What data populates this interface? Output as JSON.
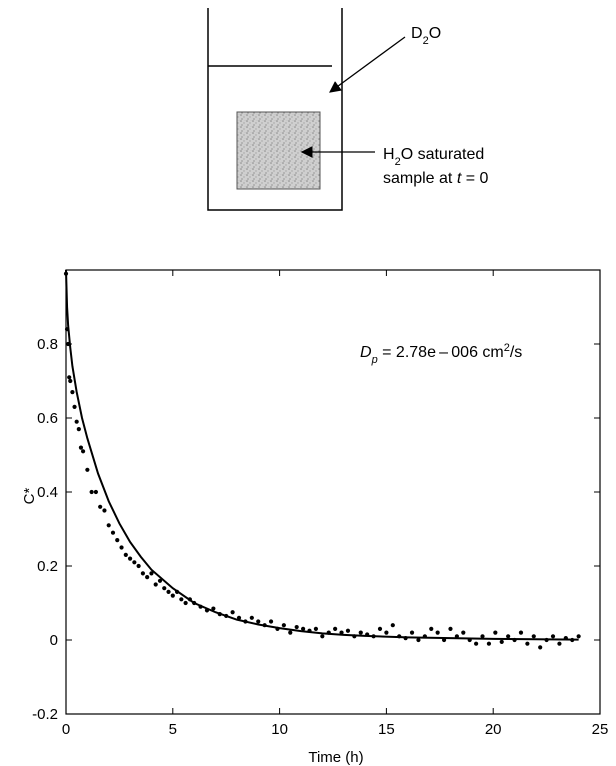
{
  "diagram": {
    "solvent_label_base": "D",
    "solvent_label_sub": "2",
    "solvent_label_tail": "O",
    "sample_line1_base": "H",
    "sample_line1_sub": "2",
    "sample_line1_tail": "O saturated",
    "sample_line2_text": "sample at ",
    "sample_line2_var": "t",
    "sample_line2_tail": " = 0"
  },
  "chart_data": {
    "type": "scatter",
    "xlabel": "Time (h)",
    "ylabel": "C*",
    "xlim": [
      0,
      25
    ],
    "ylim": [
      -0.2,
      1.0
    ],
    "xticks": [
      "0",
      "5",
      "10",
      "15",
      "20",
      "25"
    ],
    "yticks": [
      "-0.2",
      "0",
      "0.2",
      "0.4",
      "0.6",
      "0.8"
    ],
    "annotation": {
      "var": "D",
      "sub": "p",
      "eq": " = 2.78e – 006 cm",
      "sup": "2",
      "tail": "/s"
    },
    "fit_curve": {
      "x": [
        0,
        0.05,
        0.1,
        0.2,
        0.3,
        0.5,
        0.75,
        1,
        1.5,
        2,
        2.5,
        3,
        3.5,
        4,
        5,
        6,
        7,
        8,
        9,
        10,
        11,
        12,
        13,
        14,
        16,
        18,
        20,
        22,
        24
      ],
      "y": [
        1.0,
        0.9,
        0.85,
        0.79,
        0.74,
        0.67,
        0.6,
        0.545,
        0.45,
        0.375,
        0.315,
        0.265,
        0.225,
        0.19,
        0.14,
        0.1,
        0.075,
        0.055,
        0.042,
        0.032,
        0.024,
        0.018,
        0.014,
        0.011,
        0.007,
        0.005,
        0.003,
        0.002,
        0.001
      ]
    },
    "points": {
      "x": [
        0.05,
        0.1,
        0.15,
        0.2,
        0.3,
        0.4,
        0.5,
        0.6,
        0.7,
        0.8,
        1.0,
        1.2,
        1.4,
        1.6,
        1.8,
        2.0,
        2.2,
        2.4,
        2.6,
        2.8,
        3.0,
        3.2,
        3.4,
        3.6,
        3.8,
        4.0,
        4.2,
        4.4,
        4.6,
        4.8,
        5.0,
        5.2,
        5.4,
        5.6,
        5.8,
        6.0,
        6.3,
        6.6,
        6.9,
        7.2,
        7.5,
        7.8,
        8.1,
        8.4,
        8.7,
        9.0,
        9.3,
        9.6,
        9.9,
        10.2,
        10.5,
        10.8,
        11.1,
        11.4,
        11.7,
        12.0,
        12.3,
        12.6,
        12.9,
        13.2,
        13.5,
        13.8,
        14.1,
        14.4,
        14.7,
        15.0,
        15.3,
        15.6,
        15.9,
        16.2,
        16.5,
        16.8,
        17.1,
        17.4,
        17.7,
        18.0,
        18.3,
        18.6,
        18.9,
        19.2,
        19.5,
        19.8,
        20.1,
        20.4,
        20.7,
        21.0,
        21.3,
        21.6,
        21.9,
        22.2,
        22.5,
        22.8,
        23.1,
        23.4,
        23.7,
        24.0,
        0.0
      ],
      "y": [
        0.84,
        0.8,
        0.71,
        0.7,
        0.67,
        0.63,
        0.59,
        0.57,
        0.52,
        0.51,
        0.46,
        0.4,
        0.4,
        0.36,
        0.35,
        0.31,
        0.29,
        0.27,
        0.25,
        0.23,
        0.22,
        0.21,
        0.2,
        0.18,
        0.17,
        0.18,
        0.15,
        0.16,
        0.14,
        0.13,
        0.12,
        0.13,
        0.11,
        0.1,
        0.11,
        0.1,
        0.09,
        0.08,
        0.085,
        0.07,
        0.065,
        0.075,
        0.06,
        0.05,
        0.06,
        0.05,
        0.04,
        0.05,
        0.03,
        0.04,
        0.02,
        0.035,
        0.03,
        0.025,
        0.03,
        0.01,
        0.02,
        0.03,
        0.02,
        0.025,
        0.01,
        0.02,
        0.015,
        0.01,
        0.03,
        0.02,
        0.04,
        0.01,
        0.005,
        0.02,
        0.0,
        0.01,
        0.03,
        0.02,
        0.0,
        0.03,
        0.01,
        0.02,
        0.0,
        -0.01,
        0.01,
        -0.01,
        0.02,
        -0.005,
        0.01,
        0.0,
        0.02,
        -0.01,
        0.01,
        -0.02,
        0.0,
        0.01,
        -0.01,
        0.005,
        0.0,
        0.01,
        0.99
      ]
    }
  }
}
